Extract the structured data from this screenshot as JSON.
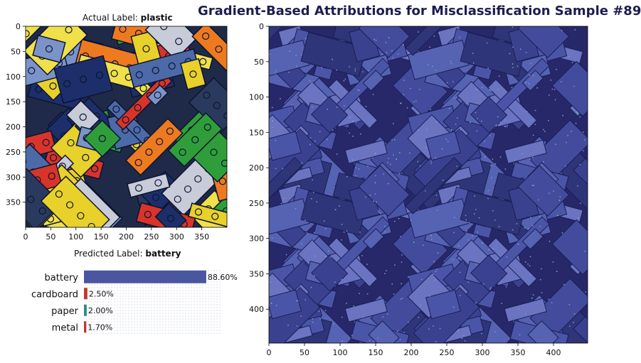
{
  "title": "Gradient-Based Attributions for Misclassification Sample #89",
  "actual": {
    "prefix": "Actual Label:",
    "value": "plastic"
  },
  "predicted": {
    "prefix": "Predicted Label:",
    "value": "battery"
  },
  "colors": {
    "title": "#1c1c50",
    "bar_top": "#4a56a0",
    "bar_other": "#c0392b",
    "bar_teal": "#2a8a88",
    "attribution_bg": "#27286a",
    "attribution_mid": "#4b55a8",
    "attribution_light": "#8c94d8"
  },
  "chart_data": [
    {
      "type": "image",
      "name": "input-image",
      "title": "Actual Label: plastic",
      "xlim": [
        0,
        400
      ],
      "ylim": [
        400,
        0
      ],
      "xticks": [
        0,
        50,
        100,
        150,
        200,
        250,
        300,
        350
      ],
      "yticks": [
        0,
        50,
        100,
        150,
        200,
        250,
        300,
        350
      ]
    },
    {
      "type": "bar",
      "name": "prediction-probabilities",
      "title": "Predicted Label: battery",
      "orientation": "horizontal",
      "categories": [
        "battery",
        "cardboard",
        "paper",
        "metal"
      ],
      "values": [
        88.6,
        2.5,
        2.0,
        1.7
      ],
      "value_labels": [
        "88.60%",
        "2.50%",
        "2.00%",
        "1.70%"
      ],
      "xlim": [
        0,
        100
      ]
    },
    {
      "type": "heatmap",
      "name": "gradient-attribution",
      "title": "",
      "xlim": [
        0,
        448
      ],
      "ylim": [
        448,
        0
      ],
      "xticks": [
        0,
        50,
        100,
        150,
        200,
        250,
        300,
        350,
        400
      ],
      "yticks": [
        0,
        50,
        100,
        150,
        200,
        250,
        300,
        350,
        400
      ]
    }
  ]
}
